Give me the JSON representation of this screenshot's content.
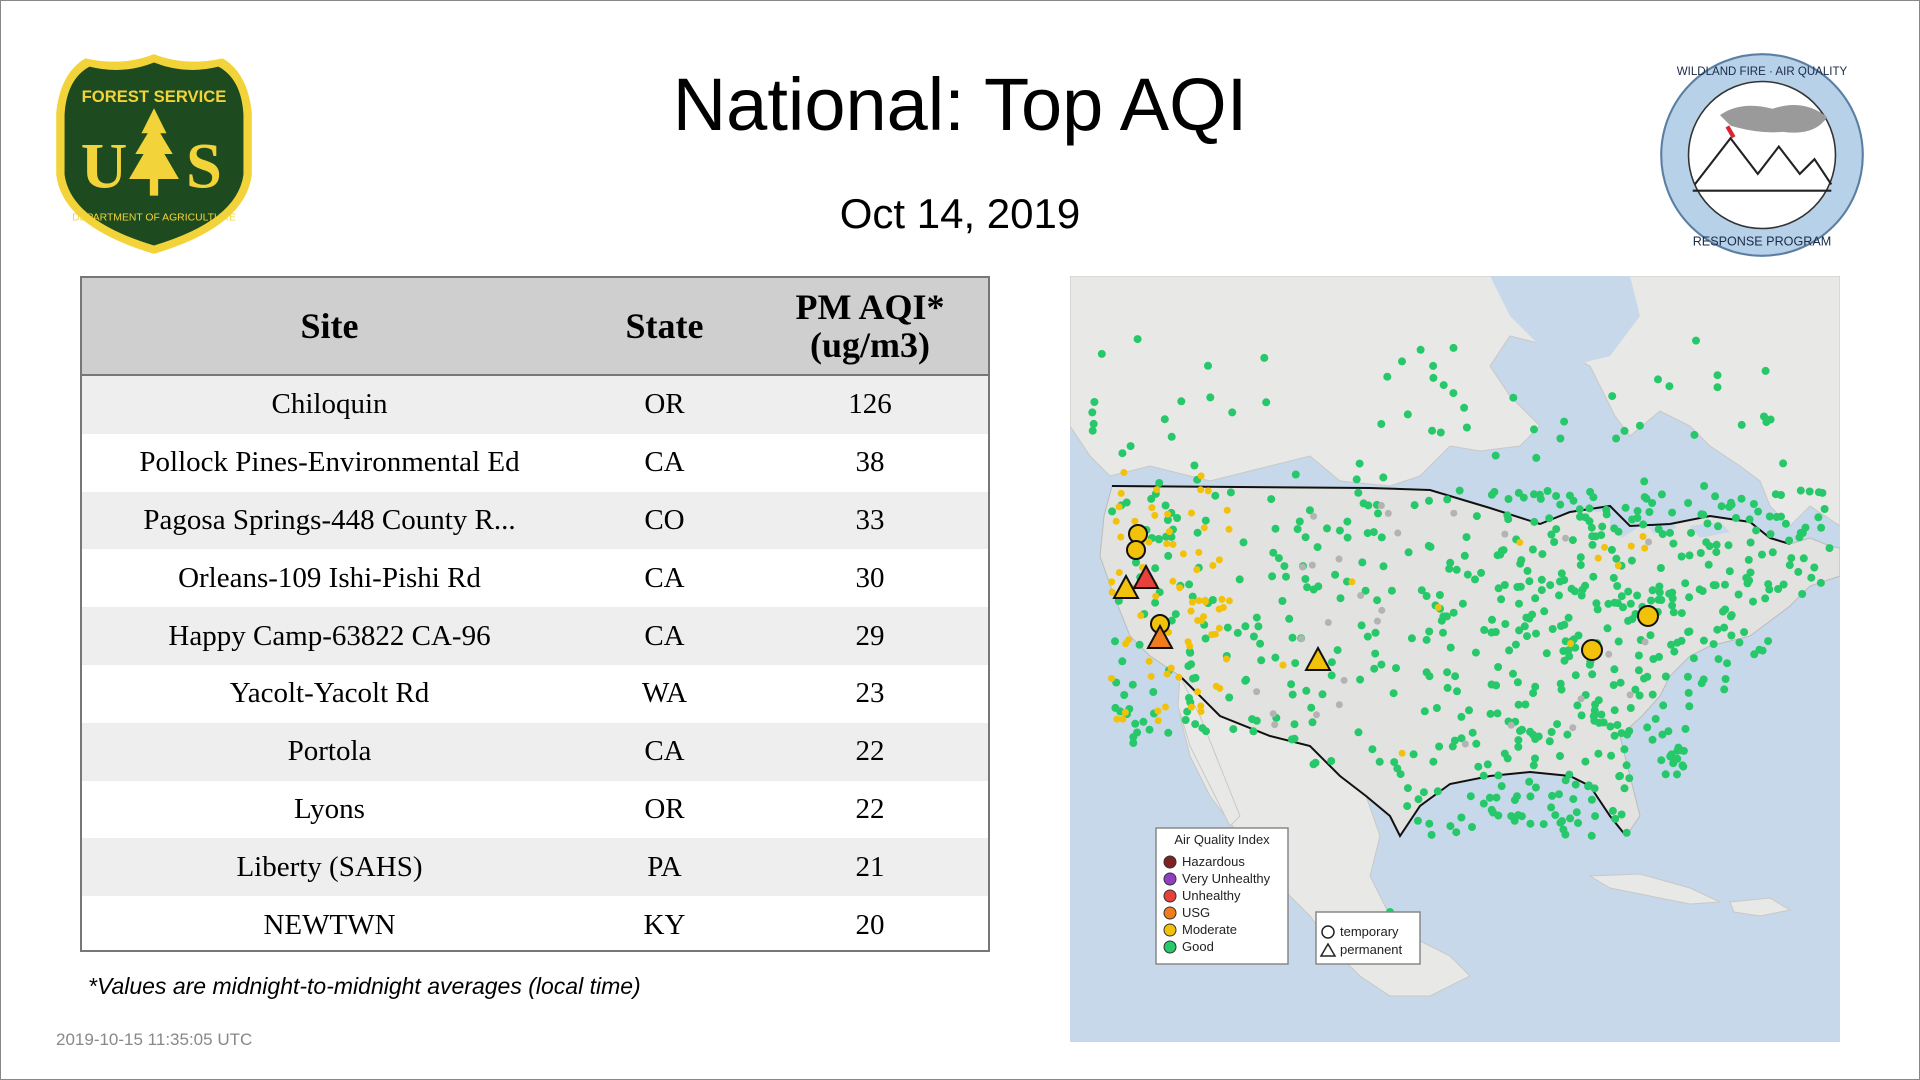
{
  "header": {
    "title": "National: Top AQI",
    "date": "Oct 14, 2019"
  },
  "logos": {
    "usfs": {
      "top_text": "FOREST SERVICE",
      "bottom_text": "DEPARTMENT OF AGRICULTURE",
      "letters_left": "U",
      "letters_right": "S",
      "colors": {
        "green": "#1d4a1f",
        "gold": "#f2d43a"
      }
    },
    "wfaqrp": {
      "top_text": "WILDLAND FIRE · AIR QUALITY",
      "bottom_text": "RESPONSE PROGRAM",
      "ring_color": "#b7d1e8"
    }
  },
  "table": {
    "headers": {
      "site": "Site",
      "state": "State",
      "aqi_line1": "PM AQI*",
      "aqi_line2": "(ug/m3)"
    },
    "rows": [
      {
        "site": "Chiloquin",
        "state": "OR",
        "aqi": "126"
      },
      {
        "site": "Pollock Pines-Environmental Ed",
        "state": "CA",
        "aqi": "38"
      },
      {
        "site": "Pagosa Springs-448 County R...",
        "state": "CO",
        "aqi": "33"
      },
      {
        "site": "Orleans-109 Ishi-Pishi Rd",
        "state": "CA",
        "aqi": "30"
      },
      {
        "site": "Happy Camp-63822 CA-96",
        "state": "CA",
        "aqi": "29"
      },
      {
        "site": "Yacolt-Yacolt Rd",
        "state": "WA",
        "aqi": "23"
      },
      {
        "site": "Portola",
        "state": "CA",
        "aqi": "22"
      },
      {
        "site": "Lyons",
        "state": "OR",
        "aqi": "22"
      },
      {
        "site": "Liberty (SAHS)",
        "state": "PA",
        "aqi": "21"
      },
      {
        "site": "NEWTWN",
        "state": "KY",
        "aqi": "20"
      }
    ]
  },
  "footnote": "*Values are midnight-to-midnight averages (local time)",
  "timestamp": "2019-10-15 11:35:05 UTC",
  "map": {
    "colors": {
      "ocean": "#c7d8ea",
      "land": "#e8e8e6",
      "us_land": "#e2e2e0"
    },
    "legend": {
      "title": "Air Quality Index",
      "items": [
        {
          "label": "Hazardous",
          "color": "#7e2420"
        },
        {
          "label": "Very Unhealthy",
          "color": "#8f3fbf"
        },
        {
          "label": "Unhealthy",
          "color": "#e8403a"
        },
        {
          "label": "USG",
          "color": "#f07c1e"
        },
        {
          "label": "Moderate",
          "color": "#f2c10a"
        },
        {
          "label": "Good",
          "color": "#27c86a"
        }
      ]
    },
    "shape_legend": {
      "temporary": "temporary",
      "permanent": "permanent"
    }
  }
}
